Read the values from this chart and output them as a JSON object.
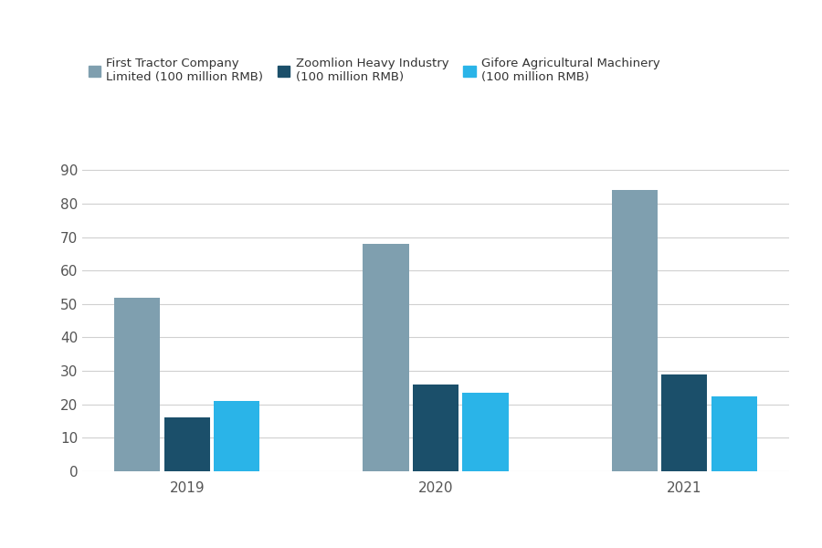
{
  "years": [
    "2019",
    "2020",
    "2021"
  ],
  "series": [
    {
      "name": "First Tractor Company\nLimited (100 million RMB)",
      "values": [
        52,
        68,
        84
      ],
      "color": "#7f9faf"
    },
    {
      "name": "Zoomlion Heavy Industry\n(100 million RMB)",
      "values": [
        16,
        26,
        29
      ],
      "color": "#1b4f6a"
    },
    {
      "name": "Gifore Agricultural Machinery\n(100 million RMB)",
      "values": [
        21,
        23.5,
        22.5
      ],
      "color": "#2ab4e8"
    }
  ],
  "ylim": [
    0,
    95
  ],
  "yticks": [
    0,
    10,
    20,
    30,
    40,
    50,
    60,
    70,
    80,
    90
  ],
  "background_color": "#ffffff",
  "grid_color": "#d0d0d0",
  "bar_width": 0.2,
  "legend_fontsize": 9.5,
  "tick_fontsize": 11,
  "tick_color": "#555555"
}
